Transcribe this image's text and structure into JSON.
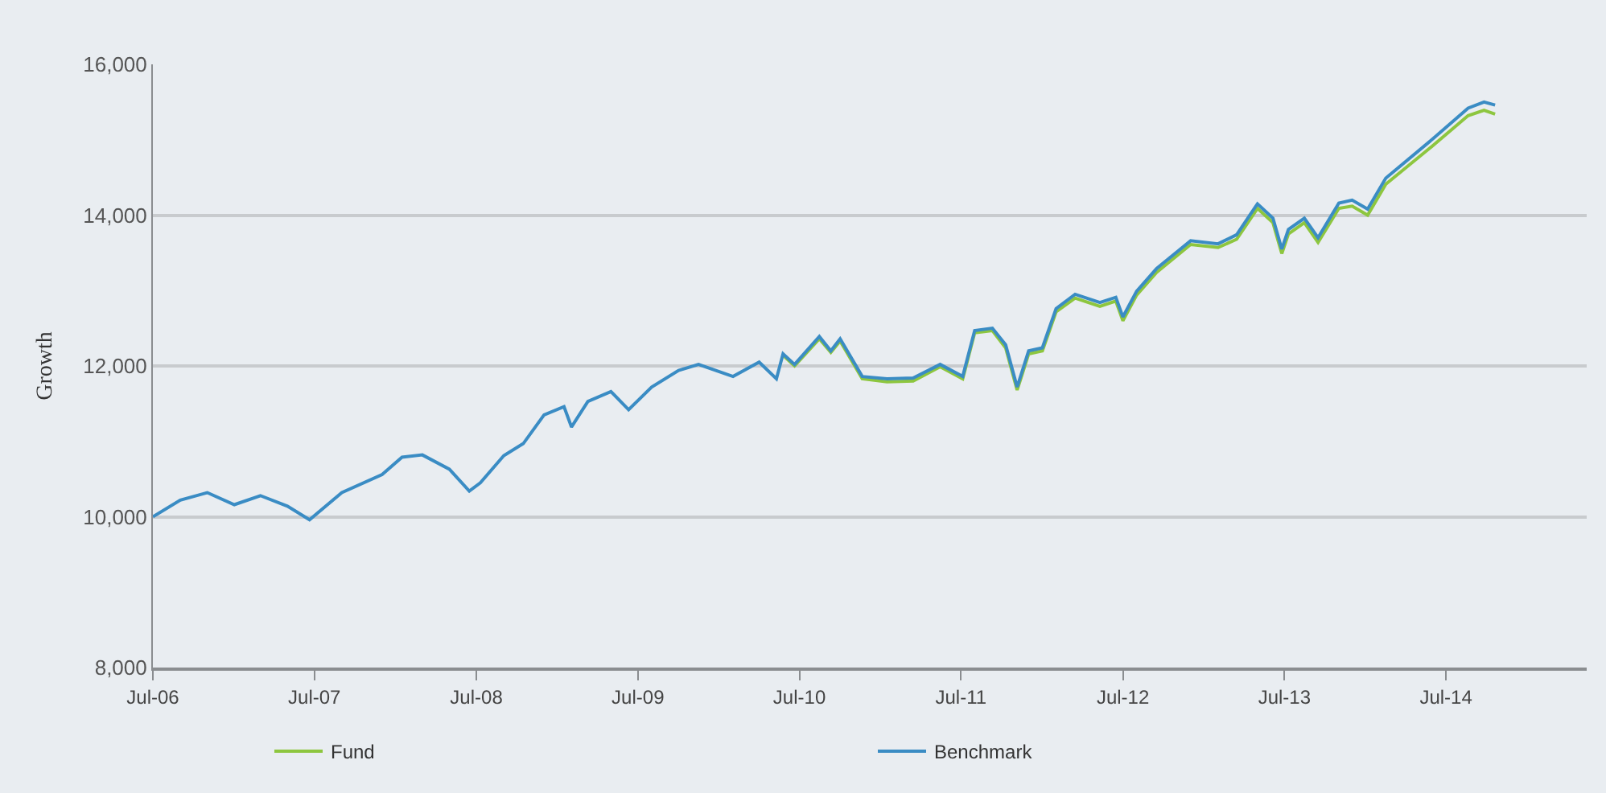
{
  "chart_data": {
    "type": "line",
    "ylabel": "Growth",
    "x": [
      "2006-07-01",
      "2006-09-01",
      "2006-11-01",
      "2007-01-01",
      "2007-03-01",
      "2007-05-01",
      "2007-06-20",
      "2007-09-01",
      "2007-12-01",
      "2008-01-15",
      "2008-03-01",
      "2008-05-01",
      "2008-06-15",
      "2008-07-10",
      "2008-09-01",
      "2008-10-15",
      "2008-12-01",
      "2009-01-15",
      "2009-02-01",
      "2009-03-10",
      "2009-05-01",
      "2009-06-10",
      "2009-08-01",
      "2009-10-01",
      "2009-11-15",
      "2010-02-01",
      "2010-04-01",
      "2010-05-10",
      "2010-05-25",
      "2010-06-20",
      "2010-08-15",
      "2010-09-10",
      "2010-10-01",
      "2010-11-20",
      "2011-01-15",
      "2011-03-15",
      "2011-05-15",
      "2011-07-05",
      "2011-08-01",
      "2011-09-10",
      "2011-10-10",
      "2011-11-05",
      "2011-12-01",
      "2012-01-01",
      "2012-02-01",
      "2012-03-15",
      "2012-05-10",
      "2012-06-15",
      "2012-07-01",
      "2012-08-01",
      "2012-09-15",
      "2012-12-01",
      "2013-02-01",
      "2013-03-15",
      "2013-05-01",
      "2013-06-05",
      "2013-06-25",
      "2013-07-10",
      "2013-08-15",
      "2013-09-15",
      "2013-11-01",
      "2013-12-01",
      "2014-01-05",
      "2014-02-15",
      "2014-06-01",
      "2014-08-20",
      "2014-09-25",
      "2014-10-20"
    ],
    "series": [
      {
        "name": "Fund",
        "color": "#8dc63f",
        "values": [
          null,
          null,
          null,
          null,
          null,
          null,
          null,
          null,
          null,
          null,
          null,
          null,
          null,
          null,
          null,
          null,
          null,
          null,
          null,
          null,
          null,
          null,
          null,
          null,
          null,
          null,
          null,
          null,
          12140,
          12000,
          12360,
          12180,
          12330,
          11830,
          11790,
          11800,
          11990,
          11830,
          12440,
          12470,
          12240,
          11680,
          12160,
          12200,
          12720,
          12900,
          12790,
          12860,
          12600,
          12940,
          13240,
          13610,
          13570,
          13680,
          14090,
          13900,
          13490,
          13750,
          13900,
          13640,
          14090,
          14120,
          14000,
          14410,
          14920,
          15320,
          15390,
          15340
        ]
      },
      {
        "name": "Benchmark",
        "color": "#3a8cc4",
        "values": [
          10000,
          10220,
          10320,
          10160,
          10280,
          10140,
          9960,
          10320,
          10560,
          10790,
          10820,
          10630,
          10340,
          10450,
          10810,
          10970,
          11350,
          11460,
          11190,
          11530,
          11660,
          11420,
          11720,
          11940,
          12020,
          11860,
          12050,
          11830,
          12160,
          12020,
          12390,
          12200,
          12360,
          11860,
          11830,
          11840,
          12020,
          11860,
          12470,
          12500,
          12280,
          11720,
          12200,
          12240,
          12760,
          12950,
          12840,
          12910,
          12650,
          12990,
          13290,
          13660,
          13620,
          13740,
          14150,
          13960,
          13550,
          13810,
          13960,
          13700,
          14160,
          14200,
          14080,
          14490,
          15010,
          15420,
          15500,
          15460
        ]
      }
    ],
    "xlim": [
      "2006-07-01",
      "2015-05-15"
    ],
    "xticks": [
      {
        "value": "2006-07-01",
        "label": "Jul-06"
      },
      {
        "value": "2007-07-01",
        "label": "Jul-07"
      },
      {
        "value": "2008-07-01",
        "label": "Jul-08"
      },
      {
        "value": "2009-07-01",
        "label": "Jul-09"
      },
      {
        "value": "2010-07-01",
        "label": "Jul-10"
      },
      {
        "value": "2011-07-01",
        "label": "Jul-11"
      },
      {
        "value": "2012-07-01",
        "label": "Jul-12"
      },
      {
        "value": "2013-07-01",
        "label": "Jul-13"
      },
      {
        "value": "2014-07-01",
        "label": "Jul-14"
      }
    ],
    "ylim": [
      8000,
      16000
    ],
    "yticks": [
      {
        "value": 8000,
        "label": "8,000"
      },
      {
        "value": 10000,
        "label": "10,000"
      },
      {
        "value": 12000,
        "label": "12,000"
      },
      {
        "value": 14000,
        "label": "14,000"
      },
      {
        "value": 16000,
        "label": "16,000"
      }
    ],
    "grid": "y",
    "legend": "bottom",
    "marker": "none",
    "line_style": "solid"
  }
}
